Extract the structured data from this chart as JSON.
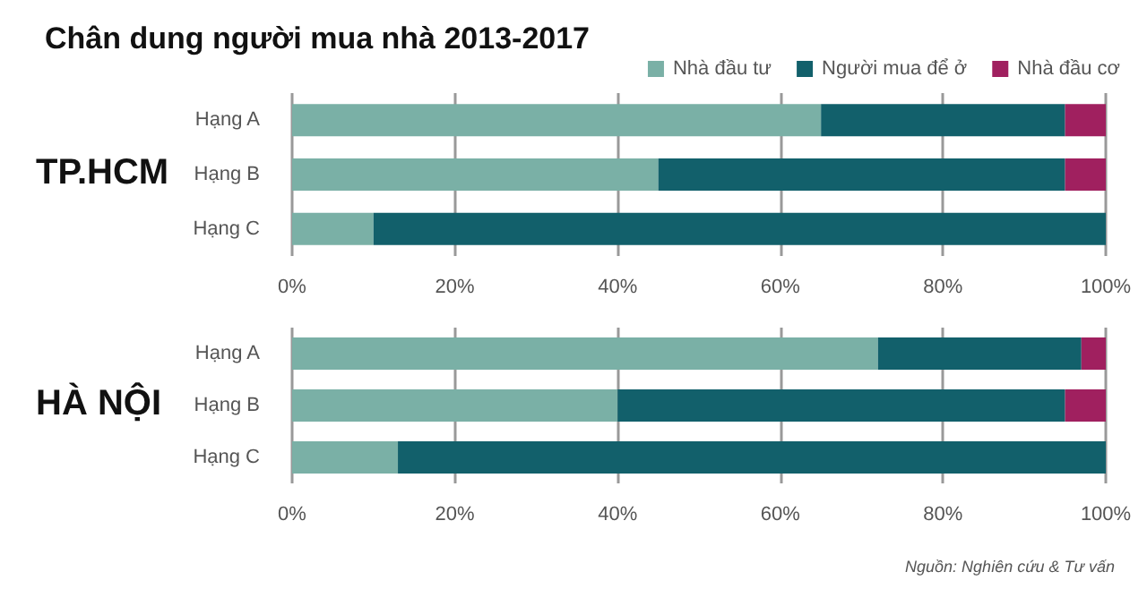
{
  "chart_data": [
    {
      "type": "bar",
      "orientation": "horizontal",
      "stacked": true,
      "title": "Chân dung người mua nhà 2013-2017",
      "ylabel": "TP.HCM",
      "categories": [
        "Hạng A",
        "Hạng B",
        "Hạng C"
      ],
      "series": [
        {
          "name": "Nhà đầu tư",
          "color": "#7ab0a6",
          "values": [
            65,
            45,
            10
          ]
        },
        {
          "name": "Người mua để ở",
          "color": "#12606b",
          "values": [
            30,
            50,
            90
          ]
        },
        {
          "name": "Nhà đầu cơ",
          "color": "#a0205f",
          "values": [
            5,
            5,
            0
          ]
        }
      ],
      "xlim": [
        0,
        100
      ],
      "xticks": [
        {
          "value": 0,
          "label": "0%"
        },
        {
          "value": 20,
          "label": "20%"
        },
        {
          "value": 40,
          "label": "40%"
        },
        {
          "value": 60,
          "label": "60%"
        },
        {
          "value": 80,
          "label": "80%"
        },
        {
          "value": 100,
          "label": "100%"
        }
      ],
      "grid": "x",
      "legend": "top right"
    },
    {
      "type": "bar",
      "orientation": "horizontal",
      "stacked": true,
      "ylabel": "HÀ NỘI",
      "categories": [
        "Hạng A",
        "Hạng B",
        "Hạng C"
      ],
      "series": [
        {
          "color": "#7ab0a6",
          "values": [
            72,
            40,
            13
          ]
        },
        {
          "color": "#12606b",
          "values": [
            25,
            55,
            87
          ]
        },
        {
          "color": "#a0205f",
          "values": [
            3,
            5,
            0
          ]
        }
      ],
      "xlim": [
        0,
        100
      ],
      "xticks": [
        {
          "value": 0,
          "label": "0%"
        },
        {
          "value": 20,
          "label": "20%"
        },
        {
          "value": 40,
          "label": "40%"
        },
        {
          "value": 60,
          "label": "60%"
        },
        {
          "value": 80,
          "label": "80%"
        },
        {
          "value": 100,
          "label": "100%"
        }
      ],
      "grid": "x",
      "annotations": [
        "Nguồn: Nghiên cứu & Tư vấn"
      ]
    }
  ]
}
